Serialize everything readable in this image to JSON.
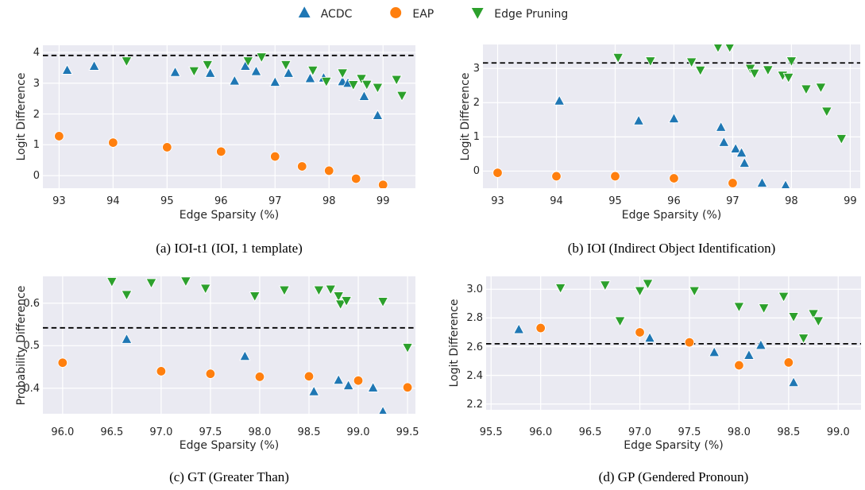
{
  "style": {
    "plot_bg": "#eaeaf2",
    "grid_color": "#ffffff",
    "text_color": "#262626",
    "dashed_color": "#000000",
    "acdc_color": "#1f77b4",
    "eap_color": "#ff7f0e",
    "edge_pruning_color": "#2ca02c"
  },
  "legend": {
    "items": [
      {
        "label": "ACDC",
        "marker": "triangle-up",
        "color": "#1f77b4"
      },
      {
        "label": "EAP",
        "marker": "circle",
        "color": "#ff7f0e"
      },
      {
        "label": "Edge Pruning",
        "marker": "triangle-down",
        "color": "#2ca02c"
      }
    ]
  },
  "chart_data": [
    {
      "id": "a",
      "type": "scatter",
      "caption": "(a) IOI-t1 (IOI, 1 template)",
      "xlabel": "Edge Sparsity (%)",
      "ylabel": "Logit Difference",
      "xlim": [
        92.7,
        99.6
      ],
      "ylim": [
        -0.41,
        4.23
      ],
      "xticks": [
        93,
        94,
        95,
        96,
        97,
        98,
        99
      ],
      "xtick_labels": [
        "93",
        "94",
        "95",
        "96",
        "97",
        "98",
        "99"
      ],
      "yticks": [
        0,
        1,
        2,
        3,
        4
      ],
      "ytick_labels": [
        "0",
        "1",
        "2",
        "3",
        "4"
      ],
      "dashed_y": 3.9,
      "grid": true,
      "series": [
        {
          "name": "ACDC",
          "marker": "triangle-up",
          "color": "#1f77b4",
          "points": [
            [
              93.15,
              3.42
            ],
            [
              93.65,
              3.55
            ],
            [
              95.15,
              3.35
            ],
            [
              95.8,
              3.32
            ],
            [
              96.25,
              3.07
            ],
            [
              96.45,
              3.55
            ],
            [
              96.65,
              3.38
            ],
            [
              97.0,
              3.03
            ],
            [
              97.25,
              3.32
            ],
            [
              97.65,
              3.15
            ],
            [
              97.9,
              3.17
            ],
            [
              98.25,
              3.05
            ],
            [
              98.35,
              3.0
            ],
            [
              98.65,
              2.57
            ],
            [
              98.9,
              1.95
            ]
          ]
        },
        {
          "name": "EAP",
          "marker": "circle",
          "color": "#ff7f0e",
          "points": [
            [
              93.0,
              1.28
            ],
            [
              94.0,
              1.07
            ],
            [
              95.0,
              0.92
            ],
            [
              96.0,
              0.78
            ],
            [
              97.0,
              0.62
            ],
            [
              97.5,
              0.3
            ],
            [
              98.0,
              0.16
            ],
            [
              98.5,
              -0.1
            ],
            [
              99.0,
              -0.3
            ]
          ]
        },
        {
          "name": "Edge Pruning",
          "marker": "triangle-down",
          "color": "#2ca02c",
          "points": [
            [
              94.25,
              3.72
            ],
            [
              95.5,
              3.4
            ],
            [
              95.75,
              3.6
            ],
            [
              96.5,
              3.72
            ],
            [
              96.75,
              3.85
            ],
            [
              97.2,
              3.6
            ],
            [
              97.7,
              3.42
            ],
            [
              97.95,
              3.06
            ],
            [
              98.25,
              3.33
            ],
            [
              98.45,
              2.95
            ],
            [
              98.6,
              3.15
            ],
            [
              98.7,
              2.96
            ],
            [
              98.9,
              2.86
            ],
            [
              99.25,
              3.12
            ],
            [
              99.35,
              2.6
            ]
          ]
        }
      ]
    },
    {
      "id": "b",
      "type": "scatter",
      "caption": "(b) IOI (Indirect Object Identification)",
      "xlabel": "Edge Sparsity (%)",
      "ylabel": "Logit Difference",
      "xlim": [
        92.75,
        99.17
      ],
      "ylim": [
        -0.5,
        3.7
      ],
      "xticks": [
        93,
        94,
        95,
        96,
        97,
        98,
        99
      ],
      "xtick_labels": [
        "93",
        "94",
        "95",
        "96",
        "97",
        "98",
        "99"
      ],
      "yticks": [
        0,
        1,
        2,
        3
      ],
      "ytick_labels": [
        "0",
        "1",
        "2",
        "3"
      ],
      "dashed_y": 3.16,
      "grid": true,
      "series": [
        {
          "name": "ACDC",
          "marker": "triangle-up",
          "color": "#1f77b4",
          "points": [
            [
              94.05,
              2.05
            ],
            [
              95.4,
              1.47
            ],
            [
              96.0,
              1.53
            ],
            [
              96.8,
              1.28
            ],
            [
              96.85,
              0.84
            ],
            [
              97.05,
              0.65
            ],
            [
              97.15,
              0.53
            ],
            [
              97.2,
              0.23
            ],
            [
              97.5,
              -0.35
            ],
            [
              97.9,
              -0.42
            ]
          ]
        },
        {
          "name": "EAP",
          "marker": "circle",
          "color": "#ff7f0e",
          "points": [
            [
              93.0,
              -0.05
            ],
            [
              94.0,
              -0.15
            ],
            [
              95.0,
              -0.15
            ],
            [
              96.0,
              -0.21
            ],
            [
              97.0,
              -0.35
            ]
          ]
        },
        {
          "name": "Edge Pruning",
          "marker": "triangle-down",
          "color": "#2ca02c",
          "points": [
            [
              95.05,
              3.32
            ],
            [
              95.6,
              3.22
            ],
            [
              96.3,
              3.19
            ],
            [
              96.45,
              2.95
            ],
            [
              96.75,
              3.62
            ],
            [
              96.95,
              3.62
            ],
            [
              97.3,
              3.0
            ],
            [
              97.37,
              2.86
            ],
            [
              97.6,
              2.96
            ],
            [
              97.85,
              2.8
            ],
            [
              97.95,
              2.74
            ],
            [
              98.0,
              3.22
            ],
            [
              98.25,
              2.4
            ],
            [
              98.5,
              2.45
            ],
            [
              98.6,
              1.75
            ],
            [
              98.85,
              0.95
            ]
          ]
        }
      ]
    },
    {
      "id": "c",
      "type": "scatter",
      "caption": "(c) GT (Greater Than)",
      "xlabel": "Edge Sparsity (%)",
      "ylabel": "Probability Difference",
      "xlim": [
        95.8,
        99.58
      ],
      "ylim": [
        0.34,
        0.663
      ],
      "xticks": [
        96.0,
        96.5,
        97.0,
        97.5,
        98.0,
        98.5,
        99.0,
        99.5
      ],
      "xtick_labels": [
        "96.0",
        "96.5",
        "97.0",
        "97.5",
        "98.0",
        "98.5",
        "99.0",
        "99.5"
      ],
      "yticks": [
        0.4,
        0.5,
        0.6
      ],
      "ytick_labels": [
        "0.4",
        "0.5",
        "0.6"
      ],
      "dashed_y": 0.542,
      "grid": true,
      "series": [
        {
          "name": "ACDC",
          "marker": "triangle-up",
          "color": "#1f77b4",
          "points": [
            [
              96.65,
              0.515
            ],
            [
              97.85,
              0.475
            ],
            [
              98.55,
              0.392
            ],
            [
              98.8,
              0.419
            ],
            [
              98.9,
              0.406
            ],
            [
              99.15,
              0.401
            ],
            [
              99.25,
              0.345
            ]
          ]
        },
        {
          "name": "EAP",
          "marker": "circle",
          "color": "#ff7f0e",
          "points": [
            [
              96.0,
              0.46
            ],
            [
              97.0,
              0.44
            ],
            [
              97.5,
              0.434
            ],
            [
              98.0,
              0.427
            ],
            [
              98.5,
              0.428
            ],
            [
              99.0,
              0.418
            ],
            [
              99.5,
              0.402
            ]
          ]
        },
        {
          "name": "Edge Pruning",
          "marker": "triangle-down",
          "color": "#2ca02c",
          "points": [
            [
              96.5,
              0.651
            ],
            [
              96.65,
              0.62
            ],
            [
              96.9,
              0.648
            ],
            [
              97.25,
              0.652
            ],
            [
              97.45,
              0.635
            ],
            [
              97.95,
              0.617
            ],
            [
              98.25,
              0.631
            ],
            [
              98.6,
              0.631
            ],
            [
              98.72,
              0.633
            ],
            [
              98.8,
              0.617
            ],
            [
              98.82,
              0.598
            ],
            [
              98.88,
              0.606
            ],
            [
              99.25,
              0.604
            ],
            [
              99.5,
              0.496
            ]
          ]
        }
      ]
    },
    {
      "id": "d",
      "type": "scatter",
      "caption": "(d) GP (Gendered Pronoun)",
      "xlabel": "Edge Sparsity (%)",
      "ylabel": "Logit Difference",
      "xlim": [
        95.45,
        99.23
      ],
      "ylim": [
        2.16,
        3.09
      ],
      "xticks": [
        95.5,
        96.0,
        96.5,
        97.0,
        97.5,
        98.0,
        98.5,
        99.0
      ],
      "xtick_labels": [
        "95.5",
        "96.0",
        "96.5",
        "97.0",
        "97.5",
        "98.0",
        "98.5",
        "99.0"
      ],
      "yticks": [
        2.2,
        2.4,
        2.6,
        2.8,
        3.0
      ],
      "ytick_labels": [
        "2.2",
        "2.4",
        "2.6",
        "2.8",
        "3.0"
      ],
      "dashed_y": 2.62,
      "grid": true,
      "series": [
        {
          "name": "ACDC",
          "marker": "triangle-up",
          "color": "#1f77b4",
          "points": [
            [
              95.78,
              2.72
            ],
            [
              97.1,
              2.66
            ],
            [
              97.75,
              2.56
            ],
            [
              98.1,
              2.54
            ],
            [
              98.22,
              2.61
            ],
            [
              98.55,
              2.35
            ]
          ]
        },
        {
          "name": "EAP",
          "marker": "circle",
          "color": "#ff7f0e",
          "points": [
            [
              96.0,
              2.73
            ],
            [
              97.0,
              2.7
            ],
            [
              97.5,
              2.63
            ],
            [
              98.0,
              2.47
            ],
            [
              98.5,
              2.49
            ]
          ]
        },
        {
          "name": "Edge Pruning",
          "marker": "triangle-down",
          "color": "#2ca02c",
          "points": [
            [
              96.2,
              3.01
            ],
            [
              96.65,
              3.03
            ],
            [
              96.8,
              2.78
            ],
            [
              97.0,
              2.99
            ],
            [
              97.08,
              3.04
            ],
            [
              97.55,
              2.99
            ],
            [
              98.0,
              2.88
            ],
            [
              98.25,
              2.87
            ],
            [
              98.45,
              2.95
            ],
            [
              98.55,
              2.81
            ],
            [
              98.65,
              2.66
            ],
            [
              98.75,
              2.83
            ],
            [
              98.8,
              2.78
            ]
          ]
        }
      ]
    }
  ]
}
